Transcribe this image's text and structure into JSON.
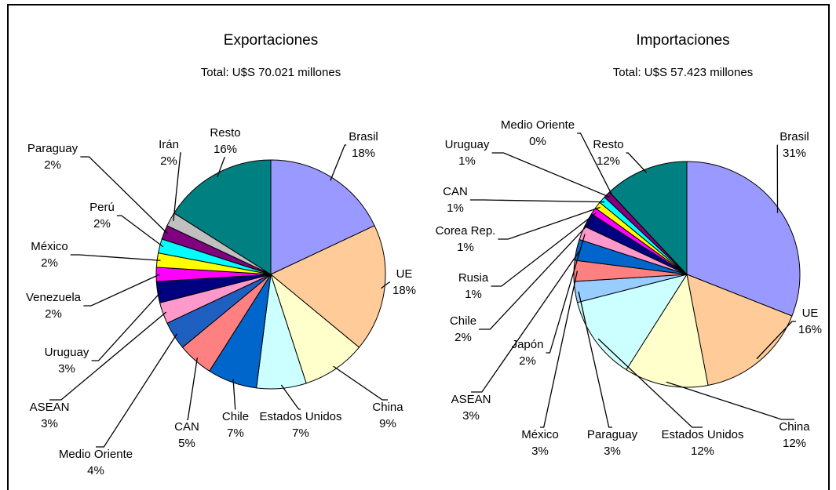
{
  "chart_data": [
    {
      "type": "pie",
      "title": "Exportaciones",
      "subtitle": "Total: U$S 70.021 millones",
      "categories": [
        "Brasil",
        "UE",
        "China",
        "Estados Unidos",
        "Chile",
        "CAN",
        "Medio Oriente",
        "ASEAN",
        "Uruguay",
        "Venezuela",
        "México",
        "Perú",
        "Paraguay",
        "Irán",
        "Resto"
      ],
      "values": [
        18,
        18,
        9,
        7,
        7,
        5,
        4,
        3,
        3,
        2,
        2,
        2,
        2,
        2,
        16
      ],
      "value_labels": [
        "18%",
        "18%",
        "9%",
        "7%",
        "7%",
        "5%",
        "4%",
        "3%",
        "3%",
        "2%",
        "2%",
        "2%",
        "2%",
        "2%",
        "16%"
      ],
      "colors": [
        "#9999ff",
        "#ffcc99",
        "#ffffcc",
        "#ccffff",
        "#0066cc",
        "#ff8080",
        "#1f5fc0",
        "#ff99cc",
        "#000080",
        "#ff00ff",
        "#ffff00",
        "#00ffff",
        "#800080",
        "#c0c0c0",
        "#008080"
      ]
    },
    {
      "type": "pie",
      "title": "Importaciones",
      "subtitle": "Total: U$S 57.423 millones",
      "categories": [
        "Brasil",
        "UE",
        "China",
        "Estados Unidos",
        "Paraguay",
        "México",
        "ASEAN",
        "Japón",
        "Chile",
        "Rusia",
        "Corea Rep.",
        "CAN",
        "Uruguay",
        "Medio Oriente",
        "Resto"
      ],
      "values": [
        31,
        16,
        12,
        12,
        3,
        3,
        3,
        2,
        2,
        1,
        1,
        1,
        1,
        0,
        12
      ],
      "value_labels": [
        "31%",
        "16%",
        "12%",
        "12%",
        "3%",
        "3%",
        "3%",
        "2%",
        "2%",
        "1%",
        "1%",
        "1%",
        "1%",
        "0%",
        "12%"
      ],
      "colors": [
        "#9999ff",
        "#ffcc99",
        "#ffffcc",
        "#ccffff",
        "#99ccff",
        "#ff8080",
        "#0066cc",
        "#ff99cc",
        "#000080",
        "#ff00ff",
        "#ffff00",
        "#00ffff",
        "#800080",
        "#c0c0c0",
        "#008080"
      ]
    }
  ]
}
